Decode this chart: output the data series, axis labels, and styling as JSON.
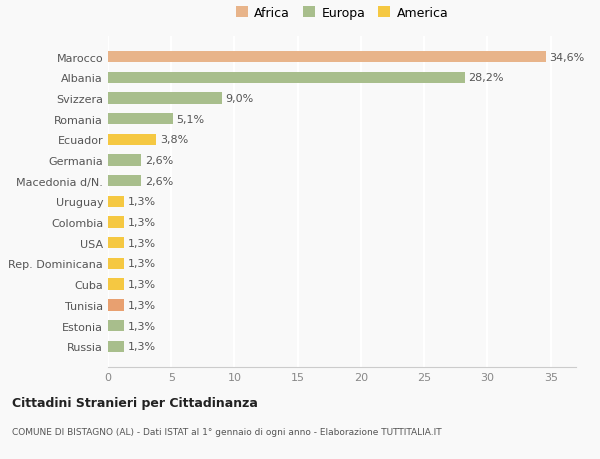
{
  "countries": [
    "Russia",
    "Estonia",
    "Tunisia",
    "Cuba",
    "Rep. Dominicana",
    "USA",
    "Colombia",
    "Uruguay",
    "Macedonia d/N.",
    "Germania",
    "Ecuador",
    "Romania",
    "Svizzera",
    "Albania",
    "Marocco"
  ],
  "values": [
    1.3,
    1.3,
    1.3,
    1.3,
    1.3,
    1.3,
    1.3,
    1.3,
    2.6,
    2.6,
    3.8,
    5.1,
    9.0,
    28.2,
    34.6
  ],
  "colors": [
    "#a8be8c",
    "#a8be8c",
    "#e8a070",
    "#f5c842",
    "#f5c842",
    "#f5c842",
    "#f5c842",
    "#f5c842",
    "#a8be8c",
    "#a8be8c",
    "#f5c842",
    "#a8be8c",
    "#a8be8c",
    "#a8be8c",
    "#e8b48a"
  ],
  "labels": [
    "1,3%",
    "1,3%",
    "1,3%",
    "1,3%",
    "1,3%",
    "1,3%",
    "1,3%",
    "1,3%",
    "2,6%",
    "2,6%",
    "3,8%",
    "5,1%",
    "9,0%",
    "28,2%",
    "34,6%"
  ],
  "xlim": [
    0,
    37
  ],
  "xticks": [
    0,
    5,
    10,
    15,
    20,
    25,
    30,
    35
  ],
  "legend_items": [
    {
      "label": "Africa",
      "color": "#e8b48a"
    },
    {
      "label": "Europa",
      "color": "#a8be8c"
    },
    {
      "label": "America",
      "color": "#f5c842"
    }
  ],
  "title": "Cittadini Stranieri per Cittadinanza",
  "subtitle": "COMUNE DI BISTAGNO (AL) - Dati ISTAT al 1° gennaio di ogni anno - Elaborazione TUTTITALIA.IT",
  "background_color": "#f9f9f9",
  "grid_color": "#ffffff",
  "bar_height": 0.55,
  "label_fontsize": 8,
  "tick_fontsize": 8
}
